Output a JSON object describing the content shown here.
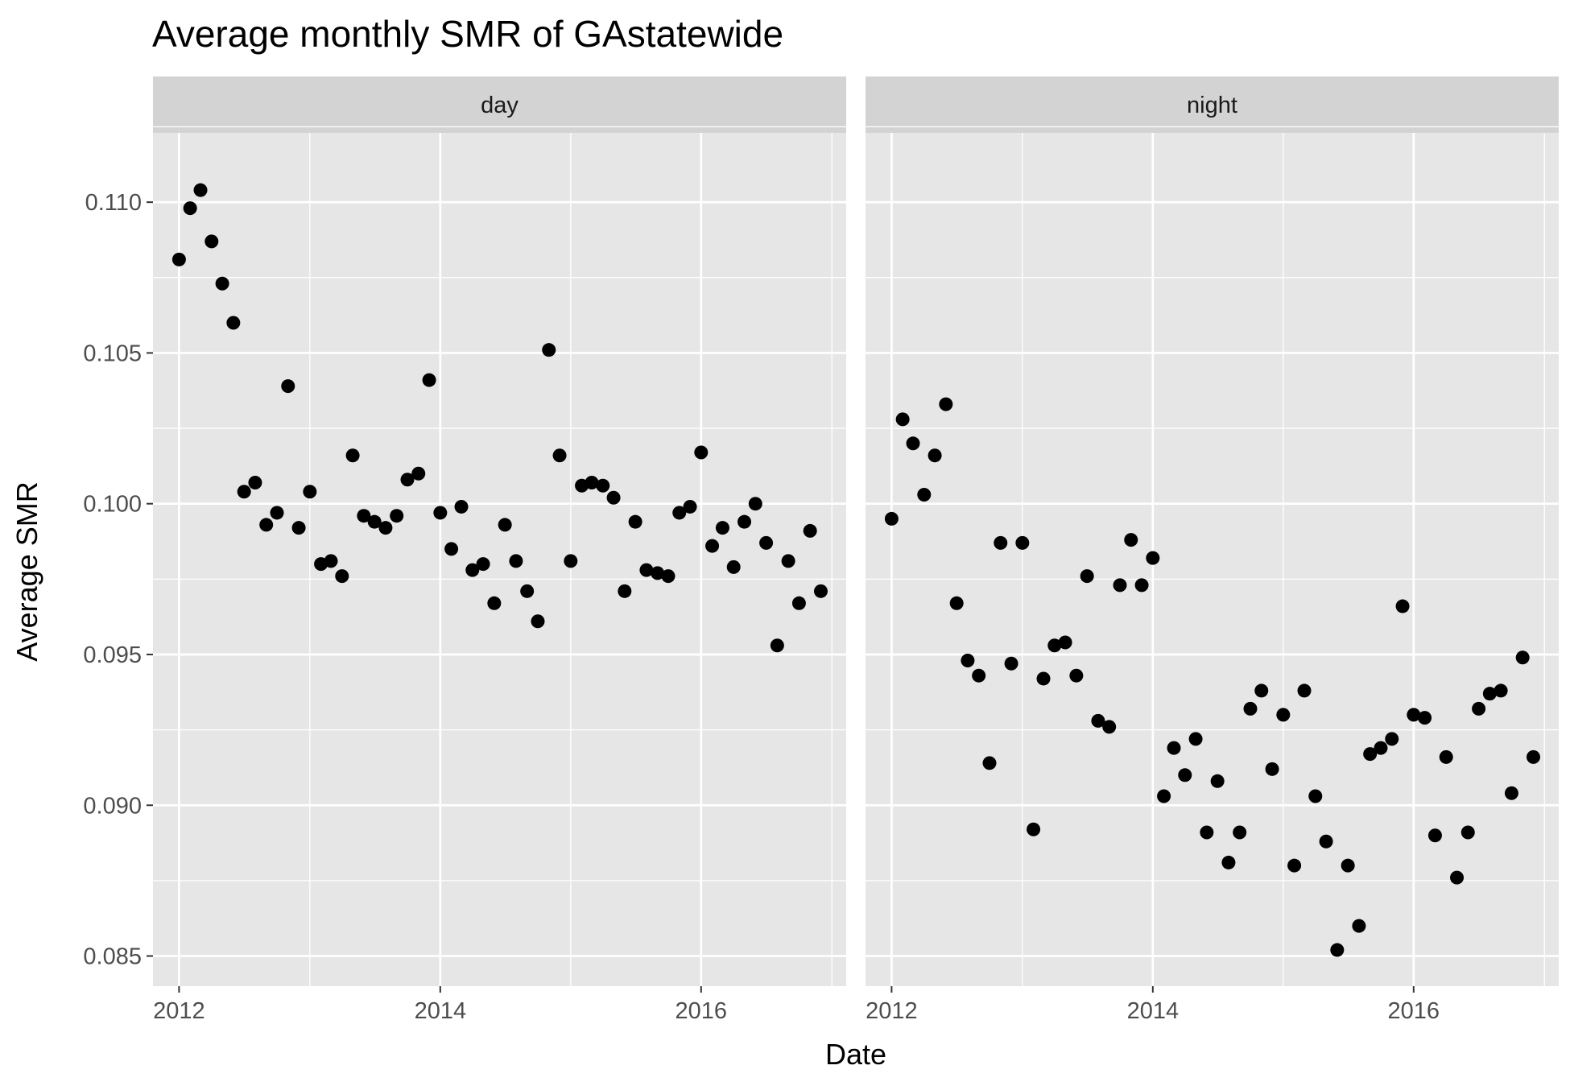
{
  "chart_data": {
    "type": "scatter",
    "title": "Average monthly SMR of GAstatewide",
    "xlabel": "Date",
    "ylabel": "Average SMR",
    "facets": [
      "day",
      "night"
    ],
    "x_ticks": [
      "2012",
      "2014",
      "2016"
    ],
    "y_ticks": [
      "0.085",
      "0.090",
      "0.095",
      "0.100",
      "0.105",
      "0.110"
    ],
    "xlim": [
      "2011-10-20",
      "2017-02-10"
    ],
    "ylim": [
      0.084,
      0.1123
    ],
    "grid": true,
    "legend": "none",
    "colors": {
      "panel_background": "#e6e6e6",
      "strip_background": "#d3d3d3",
      "grid": "#ffffff",
      "point": "#000000",
      "tick_label": "#4d4d4d"
    },
    "series": [
      {
        "facet": "day",
        "x": [
          "2012-01",
          "2012-02",
          "2012-03",
          "2012-04",
          "2012-05",
          "2012-06",
          "2012-07",
          "2012-08",
          "2012-09",
          "2012-10",
          "2012-11",
          "2012-12",
          "2013-01",
          "2013-02",
          "2013-03",
          "2013-04",
          "2013-05",
          "2013-06",
          "2013-07",
          "2013-08",
          "2013-09",
          "2013-10",
          "2013-11",
          "2013-12",
          "2014-01",
          "2014-02",
          "2014-03",
          "2014-04",
          "2014-05",
          "2014-06",
          "2014-07",
          "2014-08",
          "2014-09",
          "2014-10",
          "2014-11",
          "2014-12",
          "2015-01",
          "2015-02",
          "2015-03",
          "2015-04",
          "2015-05",
          "2015-06",
          "2015-07",
          "2015-08",
          "2015-09",
          "2015-10",
          "2015-11",
          "2015-12",
          "2016-01",
          "2016-02",
          "2016-03",
          "2016-04",
          "2016-05",
          "2016-06",
          "2016-07",
          "2016-08",
          "2016-09",
          "2016-10",
          "2016-11",
          "2016-12"
        ],
        "y": [
          0.1081,
          0.1098,
          0.1104,
          0.1087,
          0.1073,
          0.106,
          0.1004,
          0.1007,
          0.0993,
          0.0997,
          0.1039,
          0.0992,
          0.1004,
          0.098,
          0.0981,
          0.0976,
          0.1016,
          0.0996,
          0.0994,
          0.0992,
          0.0996,
          0.1008,
          0.101,
          0.1041,
          0.0997,
          0.0985,
          0.0999,
          0.0978,
          0.098,
          0.0967,
          0.0993,
          0.0981,
          0.0971,
          0.0961,
          0.1051,
          0.1016,
          0.0981,
          0.1006,
          0.1007,
          0.1006,
          0.1002,
          0.0971,
          0.0994,
          0.0978,
          0.0977,
          0.0976,
          0.0997,
          0.0999,
          0.1017,
          0.0986,
          0.0992,
          0.0979,
          0.0994,
          0.1,
          0.0987,
          0.0953,
          0.0981,
          0.0967,
          0.0991,
          0.0971
        ]
      },
      {
        "facet": "night",
        "x": [
          "2012-01",
          "2012-02",
          "2012-03",
          "2012-04",
          "2012-05",
          "2012-06",
          "2012-07",
          "2012-08",
          "2012-09",
          "2012-10",
          "2012-11",
          "2012-12",
          "2013-01",
          "2013-02",
          "2013-03",
          "2013-04",
          "2013-05",
          "2013-06",
          "2013-07",
          "2013-08",
          "2013-09",
          "2013-10",
          "2013-11",
          "2013-12",
          "2014-01",
          "2014-02",
          "2014-03",
          "2014-04",
          "2014-05",
          "2014-06",
          "2014-07",
          "2014-08",
          "2014-09",
          "2014-10",
          "2014-11",
          "2014-12",
          "2015-01",
          "2015-02",
          "2015-03",
          "2015-04",
          "2015-05",
          "2015-06",
          "2015-07",
          "2015-08",
          "2015-09",
          "2015-10",
          "2015-11",
          "2015-12",
          "2016-01",
          "2016-02",
          "2016-03",
          "2016-04",
          "2016-05",
          "2016-06",
          "2016-07",
          "2016-08",
          "2016-09",
          "2016-10",
          "2016-11",
          "2016-12"
        ],
        "y": [
          0.0995,
          0.1028,
          0.102,
          0.1003,
          0.1016,
          0.1033,
          0.0967,
          0.0948,
          0.0943,
          0.0914,
          0.0987,
          0.0947,
          0.0987,
          0.0892,
          0.0942,
          0.0953,
          0.0954,
          0.0943,
          0.0976,
          0.0928,
          0.0926,
          0.0973,
          0.0988,
          0.0973,
          0.0982,
          0.0903,
          0.0919,
          0.091,
          0.0922,
          0.0891,
          0.0908,
          0.0881,
          0.0891,
          0.0932,
          0.0938,
          0.0912,
          0.093,
          0.088,
          0.0938,
          0.0903,
          0.0888,
          0.0852,
          0.088,
          0.086,
          0.0917,
          0.0919,
          0.0922,
          0.0966,
          0.093,
          0.0929,
          0.089,
          0.0916,
          0.0876,
          0.0891,
          0.0932,
          0.0937,
          0.0938,
          0.0904,
          0.0949,
          0.0916
        ]
      }
    ]
  }
}
